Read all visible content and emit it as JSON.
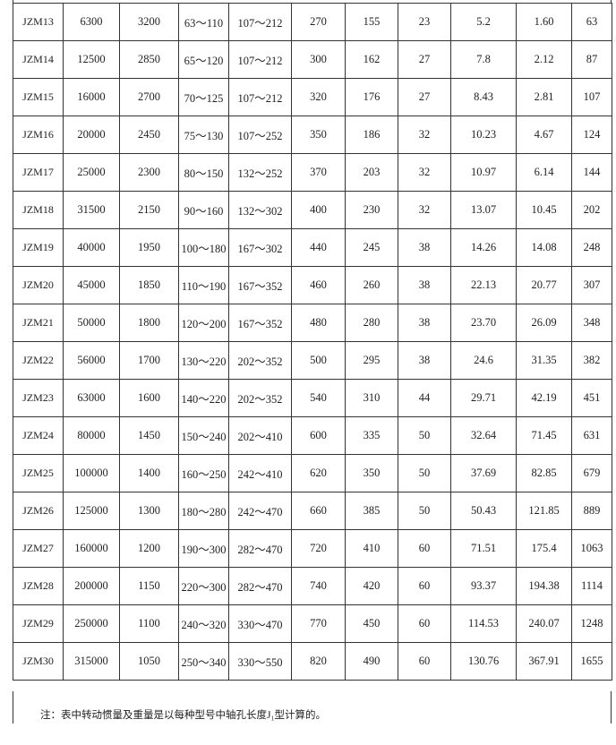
{
  "table": {
    "rows": [
      [
        "JZM13",
        "6300",
        "3200",
        "63～110",
        "107～212",
        "270",
        "155",
        "23",
        "5.2",
        "1.60",
        "63"
      ],
      [
        "JZM14",
        "12500",
        "2850",
        "65～120",
        "107～212",
        "300",
        "162",
        "27",
        "7.8",
        "2.12",
        "87"
      ],
      [
        "JZM15",
        "16000",
        "2700",
        "70～125",
        "107～212",
        "320",
        "176",
        "27",
        "8.43",
        "2.81",
        "107"
      ],
      [
        "JZM16",
        "20000",
        "2450",
        "75～130",
        "107～252",
        "350",
        "186",
        "32",
        "10.23",
        "4.67",
        "124"
      ],
      [
        "JZM17",
        "25000",
        "2300",
        "80～150",
        "132～252",
        "370",
        "203",
        "32",
        "10.97",
        "6.14",
        "144"
      ],
      [
        "JZM18",
        "31500",
        "2150",
        "90～160",
        "132～302",
        "400",
        "230",
        "32",
        "13.07",
        "10.45",
        "202"
      ],
      [
        "JZM19",
        "40000",
        "1950",
        "100～180",
        "167～302",
        "440",
        "245",
        "38",
        "14.26",
        "14.08",
        "248"
      ],
      [
        "JZM20",
        "45000",
        "1850",
        "110～190",
        "167～352",
        "460",
        "260",
        "38",
        "22.13",
        "20.77",
        "307"
      ],
      [
        "JZM21",
        "50000",
        "1800",
        "120～200",
        "167～352",
        "480",
        "280",
        "38",
        "23.70",
        "26.09",
        "348"
      ],
      [
        "JZM22",
        "56000",
        "1700",
        "130～220",
        "202～352",
        "500",
        "295",
        "38",
        "24.6",
        "31.35",
        "382"
      ],
      [
        "JZM23",
        "63000",
        "1600",
        "140～220",
        "202～352",
        "540",
        "310",
        "44",
        "29.71",
        "42.19",
        "451"
      ],
      [
        "JZM24",
        "80000",
        "1450",
        "150～240",
        "202～410",
        "600",
        "335",
        "50",
        "32.64",
        "71.45",
        "631"
      ],
      [
        "JZM25",
        "100000",
        "1400",
        "160～250",
        "242～410",
        "620",
        "350",
        "50",
        "37.69",
        "82.85",
        "679"
      ],
      [
        "JZM26",
        "125000",
        "1300",
        "180～280",
        "242～470",
        "660",
        "385",
        "50",
        "50.43",
        "121.85",
        "889"
      ],
      [
        "JZM27",
        "160000",
        "1200",
        "190～300",
        "282～470",
        "720",
        "410",
        "60",
        "71.51",
        "175.4",
        "1063"
      ],
      [
        "JZM28",
        "200000",
        "1150",
        "220～300",
        "282～470",
        "740",
        "420",
        "60",
        "93.37",
        "194.38",
        "1114"
      ],
      [
        "JZM29",
        "250000",
        "1100",
        "240～320",
        "330～470",
        "770",
        "450",
        "60",
        "114.53",
        "240.07",
        "1248"
      ],
      [
        "JZM30",
        "315000",
        "1050",
        "250～340",
        "330～550",
        "820",
        "490",
        "60",
        "130.76",
        "367.91",
        "1655"
      ]
    ],
    "note": "注：表中转动惯量及重量是以每种型号中轴孔长度J₁型计算的。"
  }
}
